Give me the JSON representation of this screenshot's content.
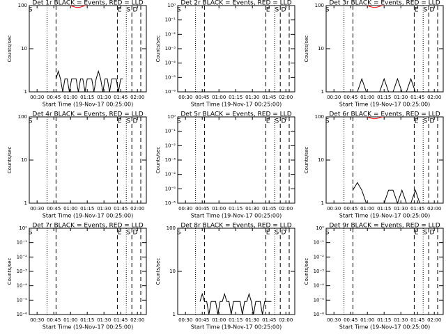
{
  "chart_data": [
    {
      "type": "line",
      "title": "Det 1r BLACK = Events, RED = LLD",
      "xlabel": "Start Time (19-Nov-17 00:25:00)",
      "ylabel": "Counts/sec",
      "log_y": true,
      "xlim": [
        "00:23",
        "02:08"
      ],
      "xticks": [
        "00:30",
        "00:45",
        "01:00",
        "01:15",
        "01:30",
        "01:45",
        "02:00"
      ],
      "ylim": [
        1,
        100
      ],
      "yticks": [
        1,
        10,
        100
      ],
      "series": [
        {
          "color": "#000000",
          "x": [
            "00:47",
            "00:49",
            "00:51",
            "00:53",
            "00:55",
            "00:57",
            "00:59",
            "01:01",
            "01:03",
            "01:05",
            "01:07",
            "01:09",
            "01:11",
            "01:13",
            "01:15",
            "01:17",
            "01:19",
            "01:21",
            "01:23",
            "01:25",
            "01:27",
            "01:29",
            "01:31",
            "01:33",
            "01:35",
            "01:37",
            "01:39",
            "01:41",
            "01:43",
            "01:45",
            "01:47"
          ],
          "values": [
            2,
            3,
            2,
            1,
            2,
            2,
            1,
            2,
            2,
            2,
            1,
            2,
            2,
            1,
            2,
            2,
            2,
            1,
            2,
            3,
            2,
            1,
            2,
            2,
            1,
            2,
            2,
            2,
            1,
            2,
            2
          ]
        },
        {
          "color": "#ff0000",
          "x": [
            "01:00",
            "01:02",
            "01:04",
            "01:06",
            "01:08",
            "01:10",
            "01:12",
            "01:14"
          ],
          "values": [
            100,
            96,
            92,
            90,
            91,
            94,
            98,
            100
          ]
        }
      ],
      "lines": [
        {
          "x": "00:39",
          "style": "dotted"
        },
        {
          "x": "00:47",
          "style": "dashed"
        },
        {
          "x": "01:42",
          "style": "dashed"
        },
        {
          "x": "01:50",
          "style": "dotted"
        },
        {
          "x": "01:55",
          "style": "dashed"
        },
        {
          "x": "02:03",
          "style": "dashed"
        }
      ],
      "annotations": [
        {
          "x": "00:24",
          "text": "S"
        },
        {
          "x": "01:44",
          "text": "E"
        },
        {
          "x": "01:52",
          "text": "S"
        },
        {
          "x": "01:58",
          "text": "D"
        }
      ]
    },
    {
      "type": "line",
      "title": "Det 2r BLACK = Events, RED = LLD",
      "xlabel": "Start Time (19-Nov-17 00:25:00)",
      "ylabel": "Counts/sec",
      "log_y": true,
      "xlim": [
        "00:23",
        "02:08"
      ],
      "xticks": [
        "00:30",
        "00:45",
        "01:00",
        "01:15",
        "01:30",
        "01:45",
        "02:00"
      ],
      "ylim": [
        1e-06,
        1
      ],
      "yticks": [
        {
          "value": 1e-06,
          "label": "10⁻⁶"
        },
        {
          "value": 1e-05,
          "label": "10⁻⁵"
        },
        {
          "value": 0.0001,
          "label": "10⁻⁴"
        },
        {
          "value": 0.001,
          "label": "10⁻³"
        },
        {
          "value": 0.01,
          "label": "10⁻²"
        },
        {
          "value": 0.1,
          "label": "10⁻¹"
        },
        {
          "value": 1,
          "label": "10⁰"
        }
      ],
      "series": [],
      "lines": [
        {
          "x": "00:39",
          "style": "dotted"
        },
        {
          "x": "00:47",
          "style": "dashed"
        },
        {
          "x": "01:42",
          "style": "dashed"
        },
        {
          "x": "01:50",
          "style": "dotted"
        },
        {
          "x": "01:55",
          "style": "dashed"
        },
        {
          "x": "02:03",
          "style": "dashed"
        }
      ],
      "annotations": [
        {
          "x": "00:24",
          "text": "S"
        },
        {
          "x": "01:44",
          "text": "E"
        },
        {
          "x": "01:52",
          "text": "S"
        },
        {
          "x": "01:58",
          "text": "D"
        }
      ]
    },
    {
      "type": "line",
      "title": "Det 3r BLACK = Events, RED = LLD",
      "xlabel": "Start Time (19-Nov-17 00:25:00)",
      "ylabel": "Counts/sec",
      "log_y": true,
      "xlim": [
        "00:23",
        "02:08"
      ],
      "xticks": [
        "00:30",
        "00:45",
        "01:00",
        "01:15",
        "01:30",
        "01:45",
        "02:00"
      ],
      "ylim": [
        1,
        100
      ],
      "yticks": [
        1,
        10,
        100
      ],
      "series": [
        {
          "color": "#000000",
          "x": [
            "00:47",
            "00:51",
            "00:55",
            "00:59",
            "01:03",
            "01:07",
            "01:11",
            "01:15",
            "01:19",
            "01:23",
            "01:27",
            "01:31",
            "01:35",
            "01:39",
            "01:43",
            "01:47"
          ],
          "values": [
            1,
            1,
            2,
            1,
            1,
            1,
            1,
            2,
            1,
            1,
            2,
            1,
            1,
            2,
            1,
            1
          ]
        },
        {
          "color": "#ff0000",
          "x": [
            "01:00",
            "01:02",
            "01:04",
            "01:06",
            "01:08",
            "01:10",
            "01:12",
            "01:14"
          ],
          "values": [
            100,
            96,
            92,
            90,
            91,
            94,
            98,
            100
          ]
        }
      ],
      "lines": [
        {
          "x": "00:39",
          "style": "dotted"
        },
        {
          "x": "00:47",
          "style": "dashed"
        },
        {
          "x": "01:42",
          "style": "dashed"
        },
        {
          "x": "01:50",
          "style": "dotted"
        },
        {
          "x": "01:55",
          "style": "dashed"
        },
        {
          "x": "02:03",
          "style": "dashed"
        }
      ],
      "annotations": [
        {
          "x": "00:24",
          "text": "S"
        },
        {
          "x": "01:44",
          "text": "E"
        },
        {
          "x": "01:52",
          "text": "S"
        },
        {
          "x": "01:58",
          "text": "D"
        }
      ]
    },
    {
      "type": "line",
      "title": "Det 4r BLACK = Events, RED = LLD",
      "xlabel": "Start Time (19-Nov-17 00:25:00)",
      "ylabel": "Counts/sec",
      "log_y": true,
      "xlim": [
        "00:23",
        "02:08"
      ],
      "xticks": [
        "00:30",
        "00:45",
        "01:00",
        "01:15",
        "01:30",
        "01:45",
        "02:00"
      ],
      "ylim": [
        1,
        100
      ],
      "yticks": [
        1,
        10,
        100
      ],
      "series": [],
      "lines": [
        {
          "x": "00:39",
          "style": "dotted"
        },
        {
          "x": "00:47",
          "style": "dashed"
        },
        {
          "x": "01:42",
          "style": "dashed"
        },
        {
          "x": "01:50",
          "style": "dotted"
        },
        {
          "x": "01:55",
          "style": "dashed"
        },
        {
          "x": "02:03",
          "style": "dashed"
        }
      ],
      "annotations": [
        {
          "x": "00:24",
          "text": "S"
        },
        {
          "x": "01:44",
          "text": "E"
        },
        {
          "x": "01:52",
          "text": "S"
        },
        {
          "x": "01:58",
          "text": "D"
        }
      ]
    },
    {
      "type": "line",
      "title": "Det 5r BLACK = Events, RED = LLD",
      "xlabel": "Start Time (19-Nov-17 00:25:00)",
      "ylabel": "Counts/sec",
      "log_y": true,
      "xlim": [
        "00:23",
        "02:08"
      ],
      "xticks": [
        "00:30",
        "00:45",
        "01:00",
        "01:15",
        "01:30",
        "01:45",
        "02:00"
      ],
      "ylim": [
        1e-06,
        1
      ],
      "yticks": [
        {
          "value": 1e-06,
          "label": "10⁻⁶"
        },
        {
          "value": 1e-05,
          "label": "10⁻⁵"
        },
        {
          "value": 0.0001,
          "label": "10⁻⁴"
        },
        {
          "value": 0.001,
          "label": "10⁻³"
        },
        {
          "value": 0.01,
          "label": "10⁻²"
        },
        {
          "value": 0.1,
          "label": "10⁻¹"
        },
        {
          "value": 1,
          "label": "10⁰"
        }
      ],
      "series": [],
      "lines": [
        {
          "x": "00:39",
          "style": "dotted"
        },
        {
          "x": "00:47",
          "style": "dashed"
        },
        {
          "x": "01:42",
          "style": "dashed"
        },
        {
          "x": "01:50",
          "style": "dotted"
        },
        {
          "x": "01:55",
          "style": "dashed"
        },
        {
          "x": "02:03",
          "style": "dashed"
        }
      ],
      "annotations": [
        {
          "x": "00:24",
          "text": "S"
        },
        {
          "x": "01:44",
          "text": "E"
        },
        {
          "x": "01:52",
          "text": "S"
        },
        {
          "x": "01:58",
          "text": "D"
        }
      ]
    },
    {
      "type": "line",
      "title": "Det 6r BLACK = Events, RED = LLD",
      "xlabel": "Start Time (19-Nov-17 00:25:00)",
      "ylabel": "Counts/sec",
      "log_y": true,
      "xlim": [
        "00:23",
        "02:08"
      ],
      "xticks": [
        "00:30",
        "00:45",
        "01:00",
        "01:15",
        "01:30",
        "01:45",
        "02:00"
      ],
      "ylim": [
        1,
        100
      ],
      "yticks": [
        1,
        10,
        100
      ],
      "series": [
        {
          "color": "#000000",
          "x": [
            "00:47",
            "00:51",
            "00:55",
            "00:59",
            "01:03",
            "01:07",
            "01:11",
            "01:15",
            "01:19",
            "01:23",
            "01:27",
            "01:31",
            "01:35",
            "01:39",
            "01:43",
            "01:47"
          ],
          "values": [
            2,
            3,
            2,
            1,
            1,
            1,
            1,
            1,
            2,
            2,
            1,
            2,
            1,
            1,
            2,
            1
          ]
        },
        {
          "color": "#ff0000",
          "x": [
            "01:00",
            "01:02",
            "01:04",
            "01:06",
            "01:08",
            "01:10",
            "01:12",
            "01:14"
          ],
          "values": [
            100,
            96,
            92,
            90,
            91,
            94,
            98,
            100
          ]
        }
      ],
      "lines": [
        {
          "x": "00:39",
          "style": "dotted"
        },
        {
          "x": "00:47",
          "style": "dashed"
        },
        {
          "x": "01:42",
          "style": "dashed"
        },
        {
          "x": "01:50",
          "style": "dotted"
        },
        {
          "x": "01:55",
          "style": "dashed"
        },
        {
          "x": "02:03",
          "style": "dashed"
        }
      ],
      "annotations": [
        {
          "x": "00:24",
          "text": "S"
        },
        {
          "x": "01:44",
          "text": "E"
        },
        {
          "x": "01:52",
          "text": "S"
        },
        {
          "x": "01:58",
          "text": "D"
        }
      ]
    },
    {
      "type": "line",
      "title": "Det 7r BLACK = Events, RED = LLD",
      "xlabel": "Start Time (19-Nov-17 00:25:00)",
      "ylabel": "Counts/sec",
      "log_y": true,
      "xlim": [
        "00:23",
        "02:08"
      ],
      "xticks": [
        "00:30",
        "00:45",
        "01:00",
        "01:15",
        "01:30",
        "01:45",
        "02:00"
      ],
      "ylim": [
        1e-06,
        1
      ],
      "yticks": [
        {
          "value": 1e-06,
          "label": "10⁻⁶"
        },
        {
          "value": 1e-05,
          "label": "10⁻⁵"
        },
        {
          "value": 0.0001,
          "label": "10⁻⁴"
        },
        {
          "value": 0.001,
          "label": "10⁻³"
        },
        {
          "value": 0.01,
          "label": "10⁻²"
        },
        {
          "value": 0.1,
          "label": "10⁻¹"
        },
        {
          "value": 1,
          "label": "10⁰"
        }
      ],
      "series": [],
      "lines": [
        {
          "x": "00:39",
          "style": "dotted"
        },
        {
          "x": "00:47",
          "style": "dashed"
        },
        {
          "x": "01:42",
          "style": "dashed"
        },
        {
          "x": "01:50",
          "style": "dotted"
        },
        {
          "x": "01:55",
          "style": "dashed"
        },
        {
          "x": "02:03",
          "style": "dashed"
        }
      ],
      "annotations": [
        {
          "x": "00:24",
          "text": "S"
        },
        {
          "x": "01:44",
          "text": "E"
        },
        {
          "x": "01:52",
          "text": "S"
        },
        {
          "x": "01:58",
          "text": "D"
        }
      ]
    },
    {
      "type": "line",
      "title": "Det 8r BLACK = Events, RED = LLD",
      "xlabel": "Start Time (19-Nov-17 00:25:00)",
      "ylabel": "Counts/sec",
      "log_y": true,
      "xlim": [
        "00:23",
        "02:08"
      ],
      "xticks": [
        "00:30",
        "00:45",
        "01:00",
        "01:15",
        "01:30",
        "01:45",
        "02:00"
      ],
      "ylim": [
        1,
        100
      ],
      "yticks": [
        1,
        10,
        100
      ],
      "series": [
        {
          "color": "#000000",
          "x": [
            "00:43",
            "00:45",
            "00:47",
            "00:49",
            "00:51",
            "00:53",
            "00:55",
            "00:57",
            "00:59",
            "01:01",
            "01:03",
            "01:05",
            "01:07",
            "01:09",
            "01:11",
            "01:13",
            "01:15",
            "01:17",
            "01:19",
            "01:21",
            "01:23",
            "01:25",
            "01:27",
            "01:29",
            "01:31",
            "01:33",
            "01:35",
            "01:37",
            "01:39",
            "01:41",
            "01:43",
            "01:45",
            "01:47"
          ],
          "values": [
            2,
            3,
            2,
            2,
            1,
            2,
            2,
            2,
            1,
            2,
            2,
            3,
            2,
            2,
            1,
            2,
            2,
            2,
            2,
            1,
            2,
            2,
            3,
            2,
            1,
            2,
            2,
            2,
            1,
            2,
            2,
            2,
            2
          ]
        }
      ],
      "lines": [
        {
          "x": "00:39",
          "style": "dotted"
        },
        {
          "x": "00:47",
          "style": "dashed"
        },
        {
          "x": "01:42",
          "style": "dashed"
        },
        {
          "x": "01:50",
          "style": "dotted"
        },
        {
          "x": "01:55",
          "style": "dashed"
        },
        {
          "x": "02:03",
          "style": "dashed"
        }
      ],
      "annotations": [
        {
          "x": "00:24",
          "text": "S"
        },
        {
          "x": "01:44",
          "text": "E"
        },
        {
          "x": "01:52",
          "text": "S"
        },
        {
          "x": "01:58",
          "text": "D"
        }
      ]
    },
    {
      "type": "line",
      "title": "Det 9r BLACK = Events, RED = LLD",
      "xlabel": "Start Time (19-Nov-17 00:25:00)",
      "ylabel": "Counts/sec",
      "log_y": true,
      "xlim": [
        "00:23",
        "02:08"
      ],
      "xticks": [
        "00:30",
        "00:45",
        "01:00",
        "01:15",
        "01:30",
        "01:45",
        "02:00"
      ],
      "ylim": [
        1e-06,
        1
      ],
      "yticks": [
        {
          "value": 1e-06,
          "label": "10⁻⁶"
        },
        {
          "value": 1e-05,
          "label": "10⁻⁵"
        },
        {
          "value": 0.0001,
          "label": "10⁻⁴"
        },
        {
          "value": 0.001,
          "label": "10⁻³"
        },
        {
          "value": 0.01,
          "label": "10⁻²"
        },
        {
          "value": 0.1,
          "label": "10⁻¹"
        },
        {
          "value": 1,
          "label": "10⁰"
        }
      ],
      "series": [],
      "lines": [
        {
          "x": "00:39",
          "style": "dotted"
        },
        {
          "x": "00:47",
          "style": "dashed"
        },
        {
          "x": "01:42",
          "style": "dashed"
        },
        {
          "x": "01:50",
          "style": "dotted"
        },
        {
          "x": "01:55",
          "style": "dashed"
        },
        {
          "x": "02:03",
          "style": "dashed"
        }
      ],
      "annotations": [
        {
          "x": "00:24",
          "text": "S"
        },
        {
          "x": "01:44",
          "text": "E"
        },
        {
          "x": "01:52",
          "text": "S"
        },
        {
          "x": "01:58",
          "text": "D"
        }
      ]
    }
  ]
}
